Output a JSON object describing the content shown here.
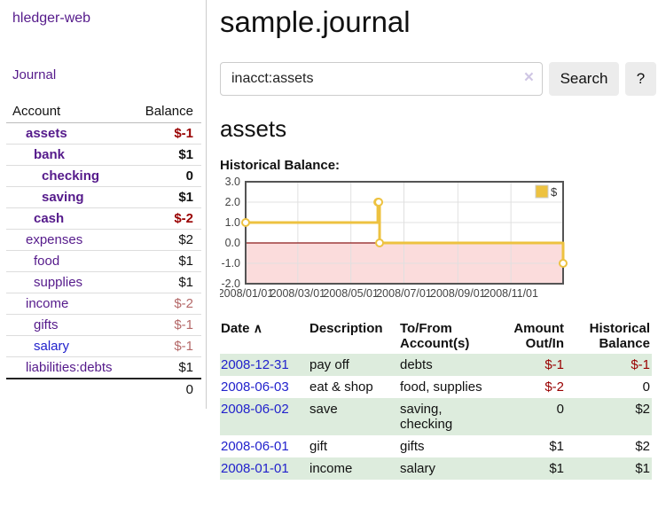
{
  "app": {
    "title": "hledger-web",
    "journal_link": "Journal"
  },
  "sidebar": {
    "headers": {
      "account": "Account",
      "balance": "Balance"
    },
    "rows": [
      {
        "account": "assets",
        "balance": "$-1"
      },
      {
        "account": "bank",
        "balance": "$1"
      },
      {
        "account": "checking",
        "balance": "0"
      },
      {
        "account": "saving",
        "balance": "$1"
      },
      {
        "account": "cash",
        "balance": "$-2"
      },
      {
        "account": "expenses",
        "balance": "$2"
      },
      {
        "account": "food",
        "balance": "$1"
      },
      {
        "account": "supplies",
        "balance": "$1"
      },
      {
        "account": "income",
        "balance": "$-2"
      },
      {
        "account": "gifts",
        "balance": "$-1"
      },
      {
        "account": "salary",
        "balance": "$-1"
      },
      {
        "account": "liabilities:debts",
        "balance": "$1"
      }
    ],
    "total": "0"
  },
  "header": {
    "title": "sample.journal"
  },
  "search": {
    "value": "inacct:assets",
    "clear_icon": "×",
    "button_label": "Search",
    "help_label": "?"
  },
  "account_page": {
    "heading": "assets",
    "chart_label": "Historical Balance:"
  },
  "chart_data": {
    "type": "line",
    "step": true,
    "series": [
      {
        "name": "$",
        "color": "#edc240",
        "dates": [
          "2008-01-01",
          "2008-06-01",
          "2008-06-02",
          "2008-06-03",
          "2008-12-31"
        ],
        "values": [
          1,
          2,
          2,
          0,
          -1
        ]
      }
    ],
    "x": {
      "min": "2008-01-01",
      "max": "2008-12-31",
      "ticks": [
        {
          "date": "2008-01-01",
          "label": "2008/01/01"
        },
        {
          "date": "2008-03-01",
          "label": "2008/03/01"
        },
        {
          "date": "2008-05-01",
          "label": "2008/05/01"
        },
        {
          "date": "2008-07-01",
          "label": "2008/07/01"
        },
        {
          "date": "2008-09-01",
          "label": "2008/09/01"
        },
        {
          "date": "2008-11-01",
          "label": "2008/11/01"
        }
      ]
    },
    "y": {
      "min": -2,
      "max": 3,
      "ticks": [
        {
          "value": 3,
          "label": "3.0"
        },
        {
          "value": 2,
          "label": "2.0"
        },
        {
          "value": 1,
          "label": "1.0"
        },
        {
          "value": 0,
          "label": "0.0"
        },
        {
          "value": -1,
          "label": "-1.0"
        },
        {
          "value": -2,
          "label": "-2.0"
        }
      ]
    },
    "colors": {
      "grid": "#e0e0e0",
      "border": "#545454",
      "zero_line": "#8b1a1a",
      "negative_fill": "#fbdcdc",
      "tick_text": "#444444"
    },
    "legend": {
      "label": "$",
      "swatch_color": "#edc240"
    }
  },
  "register": {
    "headers": {
      "date": "Date",
      "sort_icon": "∧",
      "description": "Description",
      "accounts": "To/From Account(s)",
      "amount": "Amount Out/In",
      "balance": "Historical Balance"
    },
    "rows": [
      {
        "date": "2008-12-31",
        "description": "pay off",
        "accounts": "debts",
        "amount": "$-1",
        "balance": "$-1"
      },
      {
        "date": "2008-06-03",
        "description": "eat & shop",
        "accounts": "food, supplies",
        "amount": "$-2",
        "balance": "0"
      },
      {
        "date": "2008-06-02",
        "description": "save",
        "accounts": "saving, checking",
        "amount": "0",
        "balance": "$2"
      },
      {
        "date": "2008-06-01",
        "description": "gift",
        "accounts": "gifts",
        "amount": "$1",
        "balance": "$2"
      },
      {
        "date": "2008-01-01",
        "description": "income",
        "accounts": "salary",
        "amount": "$1",
        "balance": "$1"
      }
    ]
  }
}
